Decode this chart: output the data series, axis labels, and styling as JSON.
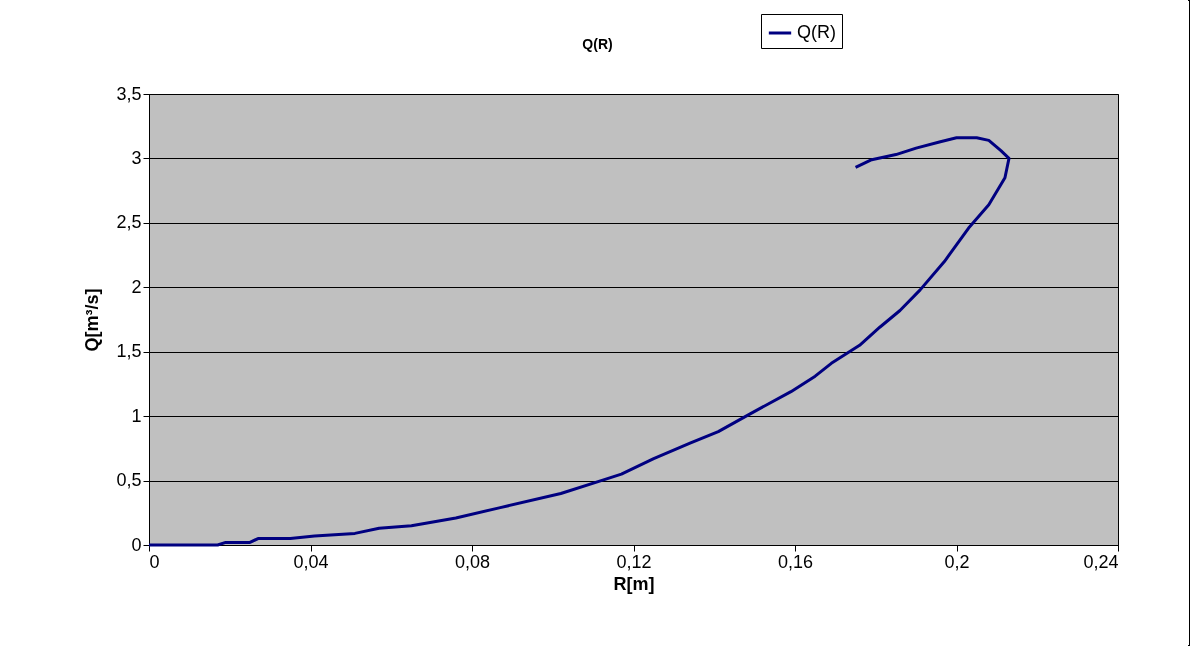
{
  "chart_data": {
    "type": "line",
    "title": "Q(R)",
    "xlabel": "R[m]",
    "ylabel": "Q[m³/s]",
    "series": [
      {
        "name": "Q(R)",
        "color": "#000080",
        "x": [
          0,
          0.017,
          0.019,
          0.025,
          0.027,
          0.035,
          0.041,
          0.051,
          0.057,
          0.065,
          0.076,
          0.087,
          0.102,
          0.112,
          0.117,
          0.125,
          0.134,
          0.141,
          0.149,
          0.159,
          0.165,
          0.169,
          0.176,
          0.181,
          0.186,
          0.191,
          0.197,
          0.203,
          0.208,
          0.212,
          0.213,
          0.211,
          0.208,
          0.205,
          0.2,
          0.196,
          0.19,
          0.185,
          0.179,
          0.175
        ],
        "values": [
          0,
          0,
          0.02,
          0.02,
          0.05,
          0.05,
          0.07,
          0.09,
          0.13,
          0.15,
          0.21,
          0.29,
          0.4,
          0.5,
          0.55,
          0.67,
          0.79,
          0.88,
          1.02,
          1.19,
          1.31,
          1.41,
          1.55,
          1.69,
          1.82,
          1.98,
          2.2,
          2.46,
          2.64,
          2.85,
          3.0,
          3.06,
          3.14,
          3.16,
          3.16,
          3.13,
          3.08,
          3.03,
          2.99,
          2.93
        ]
      }
    ],
    "xlim": [
      0,
      0.24
    ],
    "xticks": [
      0,
      {
        "value": 0.04,
        "label": "0,04"
      },
      {
        "value": 0.08,
        "label": "0,08"
      },
      {
        "value": 0.12,
        "label": "0,12"
      },
      {
        "value": 0.16,
        "label": "0,16"
      },
      {
        "value": 0.2,
        "label": "0,2"
      },
      {
        "value": 0.24,
        "label": "0,24"
      }
    ],
    "ylim": [
      0,
      3.5
    ],
    "yticks": [
      0,
      {
        "value": 0.5,
        "label": "0,5"
      },
      1,
      {
        "value": 1.5,
        "label": "1,5"
      },
      2,
      {
        "value": 2.5,
        "label": "2,5"
      },
      3,
      {
        "value": 3.5,
        "label": "3,5"
      }
    ],
    "grid": "y",
    "legend": "top right",
    "marker": "none",
    "line_style": "solid"
  }
}
